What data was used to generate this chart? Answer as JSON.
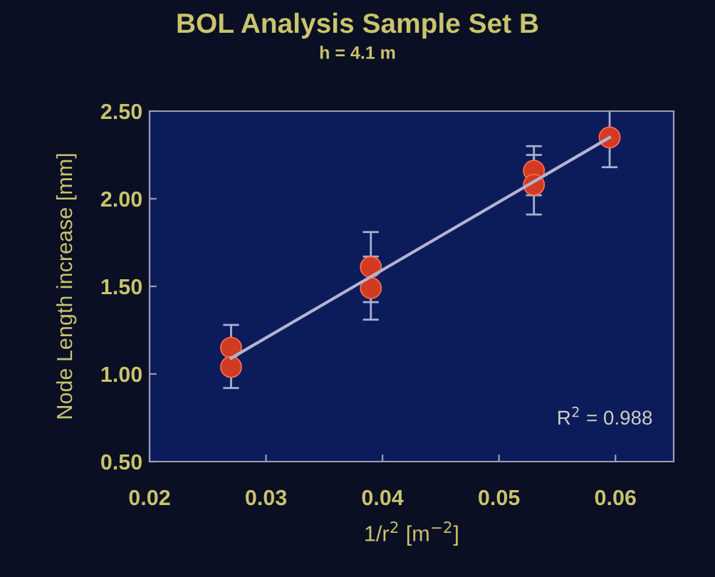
{
  "chart_data": {
    "type": "scatter",
    "title": "BOL Analysis Sample Set B",
    "subtitle": "h = 4.1 m",
    "xlabel": "1/r$^{2}$ [m$^{−2}$]",
    "ylabel": "Node Length increase [mm]",
    "series": [
      {
        "color": "#d23a22",
        "marker": "circle",
        "x": [
          0.027,
          0.027,
          0.039,
          0.039,
          0.053,
          0.053,
          0.0595
        ],
        "values": [
          1.15,
          1.04,
          1.61,
          1.49,
          2.16,
          2.08,
          2.35
        ],
        "errors": [
          0.13,
          0.12,
          0.2,
          0.18,
          0.14,
          0.17,
          0.17
        ]
      },
      {
        "type": "line",
        "marker": "none",
        "color": "#b4b4d2",
        "x": [
          0.027,
          0.0595
        ],
        "values": [
          1.09,
          2.35
        ]
      }
    ],
    "annotations": [
      "R$^{2}$ = 0.988"
    ],
    "xlim": [
      0.02,
      0.065
    ],
    "ylim": [
      0.5,
      2.5
    ],
    "xticks": [
      {
        "value": 0.02,
        "label": "0.02"
      },
      {
        "value": 0.03,
        "label": "0.03"
      },
      {
        "value": 0.04,
        "label": "0.04"
      },
      {
        "value": 0.05,
        "label": "0.05"
      },
      {
        "value": 0.06,
        "label": "0.06"
      }
    ],
    "yticks": [
      {
        "value": 0.5,
        "label": "0.50"
      },
      {
        "value": 1.0,
        "label": "1.00"
      },
      {
        "value": 1.5,
        "label": "1.50"
      },
      {
        "value": 2.0,
        "label": "2.00"
      },
      {
        "value": 2.5,
        "label": "2.50"
      }
    ],
    "grid": false,
    "legend": false
  }
}
